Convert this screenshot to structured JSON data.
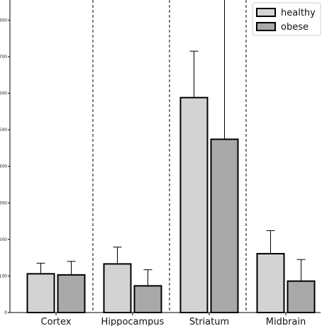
{
  "chart_data": {
    "type": "bar",
    "title": "",
    "xlabel": "",
    "ylabel": "",
    "categories": [
      "Cortex",
      "Hippocampus",
      "Striatum",
      "Midbrain"
    ],
    "series": [
      {
        "name": "healthy",
        "values": [
          106,
          133,
          588,
          161
        ],
        "errors": [
          29,
          46,
          127,
          63
        ],
        "color": "#d3d3d3"
      },
      {
        "name": "obese",
        "values": [
          103,
          73,
          474,
          86
        ],
        "errors": [
          37,
          44,
          442,
          59
        ],
        "color": "#a9a9a9"
      }
    ],
    "ylim": [
      0,
      855
    ],
    "yticks": [
      "0",
      "100",
      "200",
      "300",
      "400",
      "500",
      "600",
      "700",
      "800"
    ],
    "group_separators": "dashed",
    "grid": false,
    "legend_position": "top-right"
  }
}
